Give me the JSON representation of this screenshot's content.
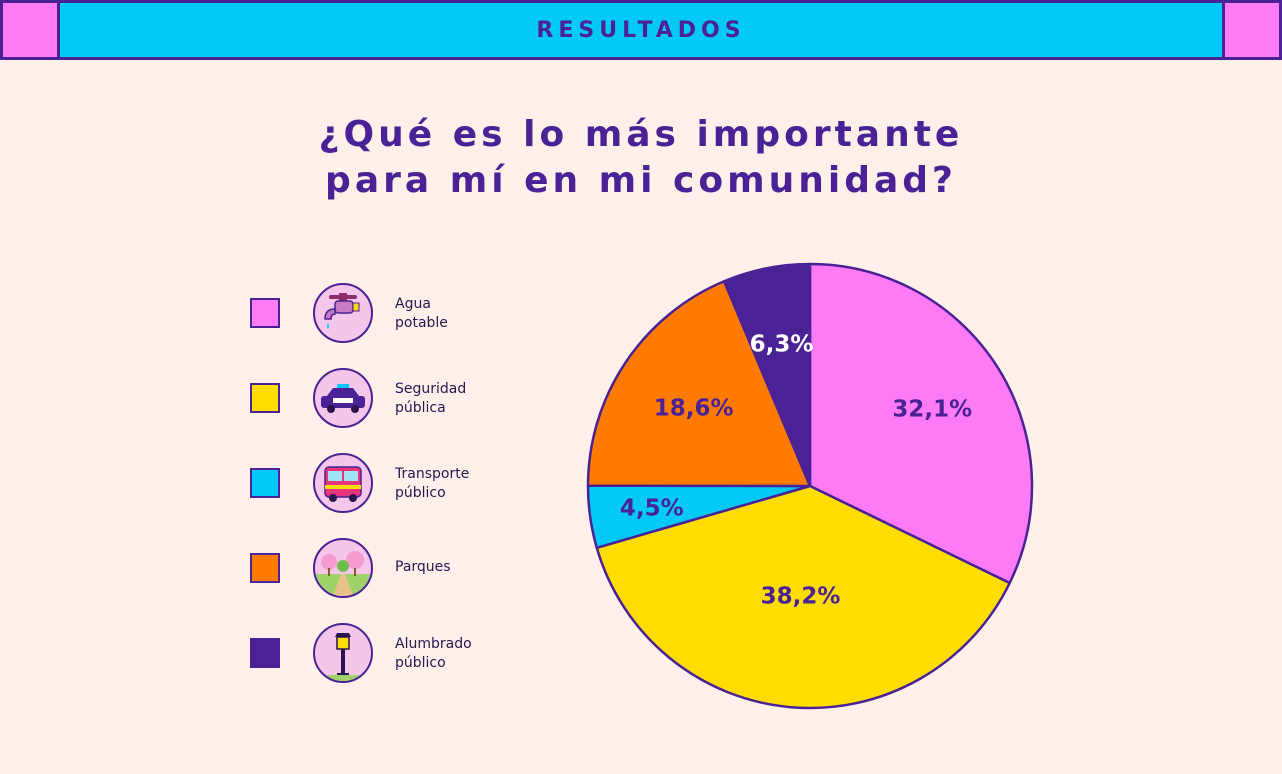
{
  "header": {
    "title": "RESULTADOS"
  },
  "question": {
    "line1": "¿Qué es lo más importante",
    "line2": "para mí en mi comunidad?"
  },
  "legend": {
    "items": [
      {
        "line1": "Agua",
        "line2": "potable",
        "icon": "faucet-icon",
        "color": "#FF7BF5"
      },
      {
        "line1": "Seguridad",
        "line2": "pública",
        "icon": "police-car-icon",
        "color": "#FFDD00"
      },
      {
        "line1": "Transporte",
        "line2": "público",
        "icon": "bus-icon",
        "color": "#02C9F7"
      },
      {
        "line1": "Parques",
        "line2": "",
        "icon": "park-icon",
        "color": "#FF7B00"
      },
      {
        "line1": "Alumbrado",
        "line2": "público",
        "icon": "street-lamp-icon",
        "color": "#4A2296"
      }
    ]
  },
  "colors": {
    "primary": "#4A2296",
    "background": "#FFF1EA",
    "banner": "#02C9F7",
    "accent": "#FF7BF5"
  },
  "chart_data": {
    "type": "pie",
    "categories": [
      "Agua potable",
      "Seguridad pública",
      "Transporte público",
      "Parques",
      "Alumbrado público"
    ],
    "values": [
      32.1,
      38.2,
      4.5,
      18.6,
      6.3
    ],
    "labels": [
      "32,1%",
      "38,2%",
      "4,5%",
      "18,6%",
      "6,3%"
    ],
    "colors": [
      "#FF7BF5",
      "#FFDD00",
      "#02C9F7",
      "#FF7B00",
      "#4A2296"
    ],
    "label_colors": [
      "#4A2296",
      "#4A2296",
      "#4A2296",
      "#4A2296",
      "#FFFFFF"
    ],
    "title": "¿Qué es lo más importante para mí en mi comunidad?",
    "start": "12 o'clock",
    "direction": "clockwise",
    "legend": "left"
  }
}
